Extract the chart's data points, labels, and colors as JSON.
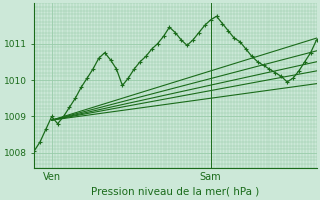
{
  "bg_color": "#cce8d8",
  "grid_color": "#99ccaa",
  "line_color_main": "#1a6b1a",
  "xlabel": "Pression niveau de la mer( hPa )",
  "xtick_labels": [
    "Ven",
    "Sam"
  ],
  "ylim": [
    1007.6,
    1012.1
  ],
  "yticks": [
    1008,
    1009,
    1010,
    1011
  ],
  "figsize": [
    3.2,
    2.0
  ],
  "dpi": 100,
  "wavy_x": [
    0,
    1,
    2,
    3,
    4,
    5,
    6,
    7,
    8,
    9,
    10,
    11,
    12,
    13,
    14,
    15,
    16,
    17,
    18,
    19,
    20,
    21,
    22,
    23,
    24,
    25,
    26,
    27,
    28,
    29,
    30,
    31,
    32,
    33,
    34,
    35,
    36,
    37,
    38,
    39,
    40,
    41,
    42,
    43,
    44,
    45,
    46,
    47,
    48
  ],
  "wavy_y": [
    1008.05,
    1008.3,
    1008.65,
    1009.0,
    1008.8,
    1009.0,
    1009.25,
    1009.5,
    1009.8,
    1010.05,
    1010.3,
    1010.6,
    1010.75,
    1010.55,
    1010.3,
    1009.85,
    1010.05,
    1010.3,
    1010.5,
    1010.65,
    1010.85,
    1011.0,
    1011.2,
    1011.45,
    1011.3,
    1011.1,
    1010.95,
    1011.1,
    1011.3,
    1011.5,
    1011.65,
    1011.75,
    1011.55,
    1011.35,
    1011.15,
    1011.05,
    1010.85,
    1010.65,
    1010.5,
    1010.4,
    1010.3,
    1010.2,
    1010.1,
    1009.95,
    1010.05,
    1010.25,
    1010.5,
    1010.75,
    1011.1
  ],
  "xlim": [
    0,
    48
  ],
  "ven_x": 3,
  "sam_x": 30,
  "vline_x": 30,
  "straight_lines_x0": 3,
  "straight_lines_y0": 1008.9,
  "straight_lines": [
    {
      "x1": 48,
      "y1": 1011.15
    },
    {
      "x1": 48,
      "y1": 1010.8
    },
    {
      "x1": 48,
      "y1": 1010.5
    },
    {
      "x1": 48,
      "y1": 1010.25
    },
    {
      "x1": 48,
      "y1": 1009.9
    }
  ]
}
